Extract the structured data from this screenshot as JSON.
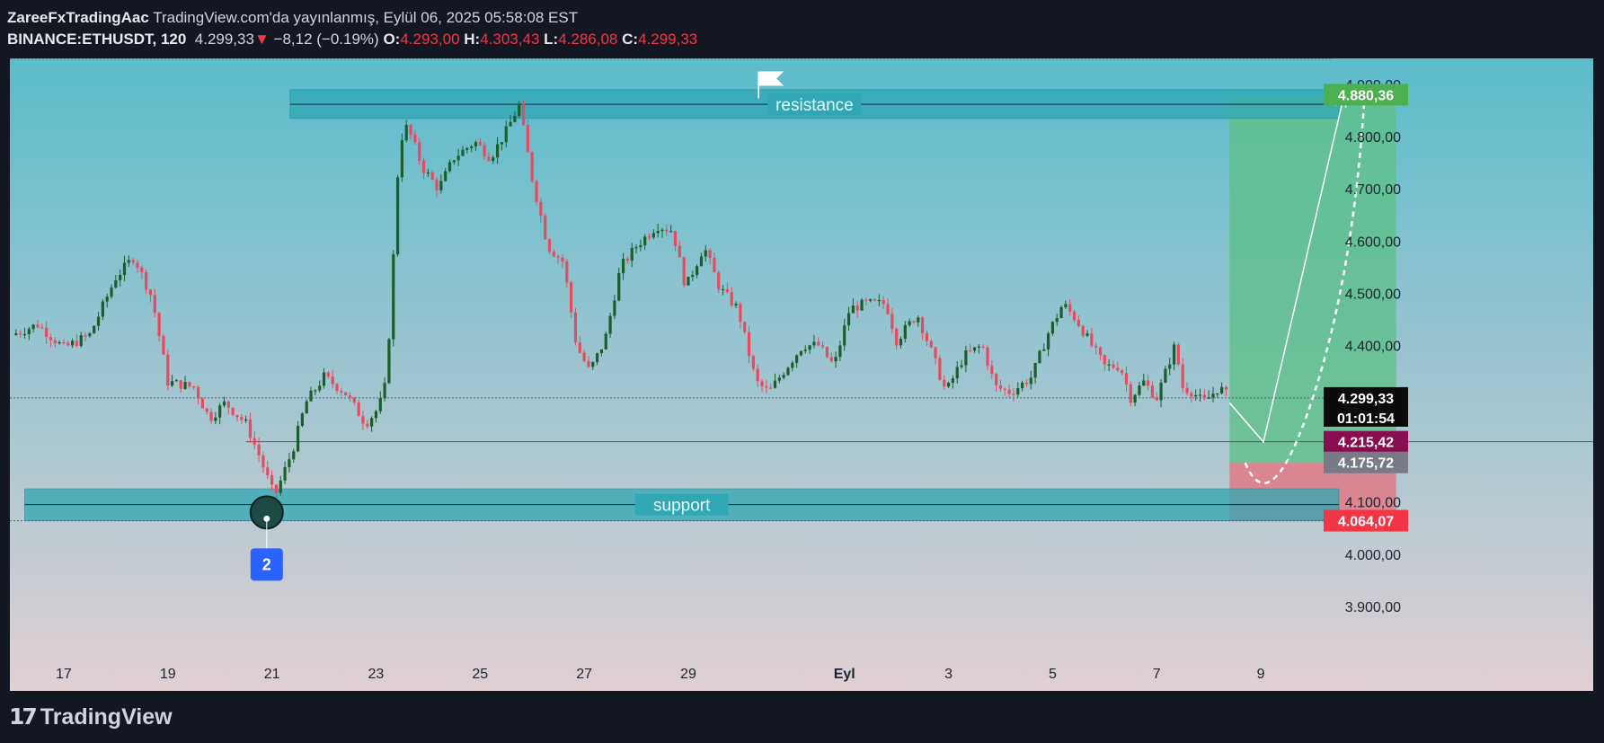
{
  "header": {
    "author": "ZareeFxTradingAac",
    "published": "TradingView.com'da yayınlanmış, Eylül 06, 2025 05:58:08 EST",
    "symbol": "BINANCE:ETHUSDT, 120",
    "last": "4.299,33",
    "down_arrow": "▼",
    "change": "−8,12 (−0.19%)",
    "o_label": "O:",
    "o": "4.293,00",
    "h_label": "H:",
    "h": "4.303,43",
    "l_label": "L:",
    "l": "4.286,08",
    "c_label": "C:",
    "c": "4.299,33"
  },
  "footer": {
    "brand": "TradingView",
    "logo_icon": "tradingview-logo-icon"
  },
  "colors": {
    "bg_top": "#5bbccc",
    "bg_bottom": "#e0cfd3",
    "bull": "#1a5e2b",
    "bear": "#e84a5f",
    "zone": "#2fa7b4",
    "target": "#5fbf8a",
    "stop": "#e07a86",
    "label_green": "#4caf50",
    "label_maroon": "#880e4f",
    "label_grey": "#787b86",
    "label_red": "#f23645",
    "label_black": "#0b0b0b"
  },
  "chart_data": {
    "type": "candlestick",
    "timeframe": "120",
    "y_range": [
      3855,
      4950
    ],
    "x_range_days": [
      16,
      41
    ],
    "y_ticks": [
      "4.900,00",
      "4.800,00",
      "4.700,00",
      "4.600,00",
      "4.500,00",
      "4.400,00",
      "4.100,00",
      "4.000,00",
      "3.900,00"
    ],
    "y_tick_values": [
      4900,
      4800,
      4700,
      4600,
      4500,
      4400,
      4100,
      4000,
      3900
    ],
    "x_ticks": [
      {
        "label": "17",
        "day": 17
      },
      {
        "label": "19",
        "day": 19
      },
      {
        "label": "21",
        "day": 21
      },
      {
        "label": "23",
        "day": 23
      },
      {
        "label": "25",
        "day": 25
      },
      {
        "label": "27",
        "day": 27
      },
      {
        "label": "29",
        "day": 29
      },
      {
        "label": "Eyl",
        "day": 32
      },
      {
        "label": "3",
        "day": 34
      },
      {
        "label": "5",
        "day": 36
      },
      {
        "label": "7",
        "day": 38
      },
      {
        "label": "9",
        "day": 40
      }
    ],
    "anchors": [
      [
        16.0,
        4420
      ],
      [
        16.5,
        4440
      ],
      [
        17.0,
        4395
      ],
      [
        17.5,
        4420
      ],
      [
        18.0,
        4530
      ],
      [
        18.35,
        4570
      ],
      [
        18.7,
        4490
      ],
      [
        19.0,
        4330
      ],
      [
        19.5,
        4320
      ],
      [
        19.8,
        4260
      ],
      [
        20.1,
        4290
      ],
      [
        20.5,
        4250
      ],
      [
        20.75,
        4190
      ],
      [
        21.05,
        4110
      ],
      [
        21.4,
        4200
      ],
      [
        21.65,
        4290
      ],
      [
        22.0,
        4340
      ],
      [
        22.4,
        4310
      ],
      [
        22.8,
        4250
      ],
      [
        23.05,
        4280
      ],
      [
        23.2,
        4330
      ],
      [
        23.35,
        4600
      ],
      [
        23.45,
        4790
      ],
      [
        23.6,
        4820
      ],
      [
        23.9,
        4740
      ],
      [
        24.2,
        4700
      ],
      [
        24.5,
        4760
      ],
      [
        24.9,
        4790
      ],
      [
        25.2,
        4760
      ],
      [
        25.5,
        4810
      ],
      [
        25.75,
        4860
      ],
      [
        26.0,
        4720
      ],
      [
        26.3,
        4590
      ],
      [
        26.6,
        4560
      ],
      [
        26.85,
        4400
      ],
      [
        27.1,
        4350
      ],
      [
        27.4,
        4410
      ],
      [
        27.7,
        4550
      ],
      [
        28.0,
        4590
      ],
      [
        28.4,
        4630
      ],
      [
        28.7,
        4620
      ],
      [
        28.95,
        4510
      ],
      [
        29.3,
        4590
      ],
      [
        29.6,
        4510
      ],
      [
        29.95,
        4470
      ],
      [
        30.3,
        4330
      ],
      [
        30.55,
        4310
      ],
      [
        30.9,
        4360
      ],
      [
        31.2,
        4400
      ],
      [
        31.5,
        4400
      ],
      [
        31.8,
        4360
      ],
      [
        32.1,
        4470
      ],
      [
        32.4,
        4480
      ],
      [
        32.8,
        4480
      ],
      [
        33.0,
        4410
      ],
      [
        33.4,
        4460
      ],
      [
        33.7,
        4380
      ],
      [
        33.95,
        4310
      ],
      [
        34.3,
        4380
      ],
      [
        34.65,
        4400
      ],
      [
        34.9,
        4320
      ],
      [
        35.2,
        4310
      ],
      [
        35.6,
        4340
      ],
      [
        35.9,
        4420
      ],
      [
        36.2,
        4480
      ],
      [
        36.45,
        4450
      ],
      [
        36.75,
        4400
      ],
      [
        37.0,
        4360
      ],
      [
        37.3,
        4360
      ],
      [
        37.5,
        4300
      ],
      [
        37.75,
        4330
      ],
      [
        38.0,
        4300
      ],
      [
        38.35,
        4400
      ],
      [
        38.5,
        4320
      ],
      [
        38.7,
        4310
      ],
      [
        38.9,
        4290
      ],
      [
        39.2,
        4320
      ],
      [
        39.4,
        4299.33
      ]
    ],
    "last_price": 4299.33,
    "last_price_label": "4.299,33",
    "countdown": "01:01:54",
    "zones": [
      {
        "name": "resistance",
        "label": "resistance",
        "low": 4835,
        "high": 4890,
        "from_day": 21.35,
        "to_day": 41.5,
        "mid": 4862
      },
      {
        "name": "support",
        "label": "support",
        "low": 4064.07,
        "high": 4125,
        "from_day": 16.25,
        "to_day": 41.5,
        "mid": 4095
      }
    ],
    "position": {
      "type": "long",
      "start_day": 39.4,
      "end_day": 42.6,
      "entry": 4175.72,
      "target": 4880.36,
      "stop": 4064.07,
      "target_label": "4.880,36",
      "entry_label": "4.175,72",
      "stop_label": "4.064,07"
    },
    "horizontal_line": {
      "value": 4215.42,
      "label": "4.215,42",
      "from_day": 20.5
    },
    "dotted_lines": [
      4299.33,
      4950,
      4064.07
    ],
    "marker": {
      "text": "2",
      "day": 20.9,
      "price": 4080
    },
    "flag": {
      "day": 30.35,
      "price": 4925
    },
    "projection_solid": [
      [
        39.4,
        4290
      ],
      [
        40.05,
        4215
      ],
      [
        41.6,
        4880
      ]
    ],
    "projection_dashed": [
      [
        39.7,
        4175
      ],
      [
        40.2,
        4125
      ],
      [
        41.0,
        4300
      ],
      [
        42.0,
        4890
      ]
    ]
  }
}
